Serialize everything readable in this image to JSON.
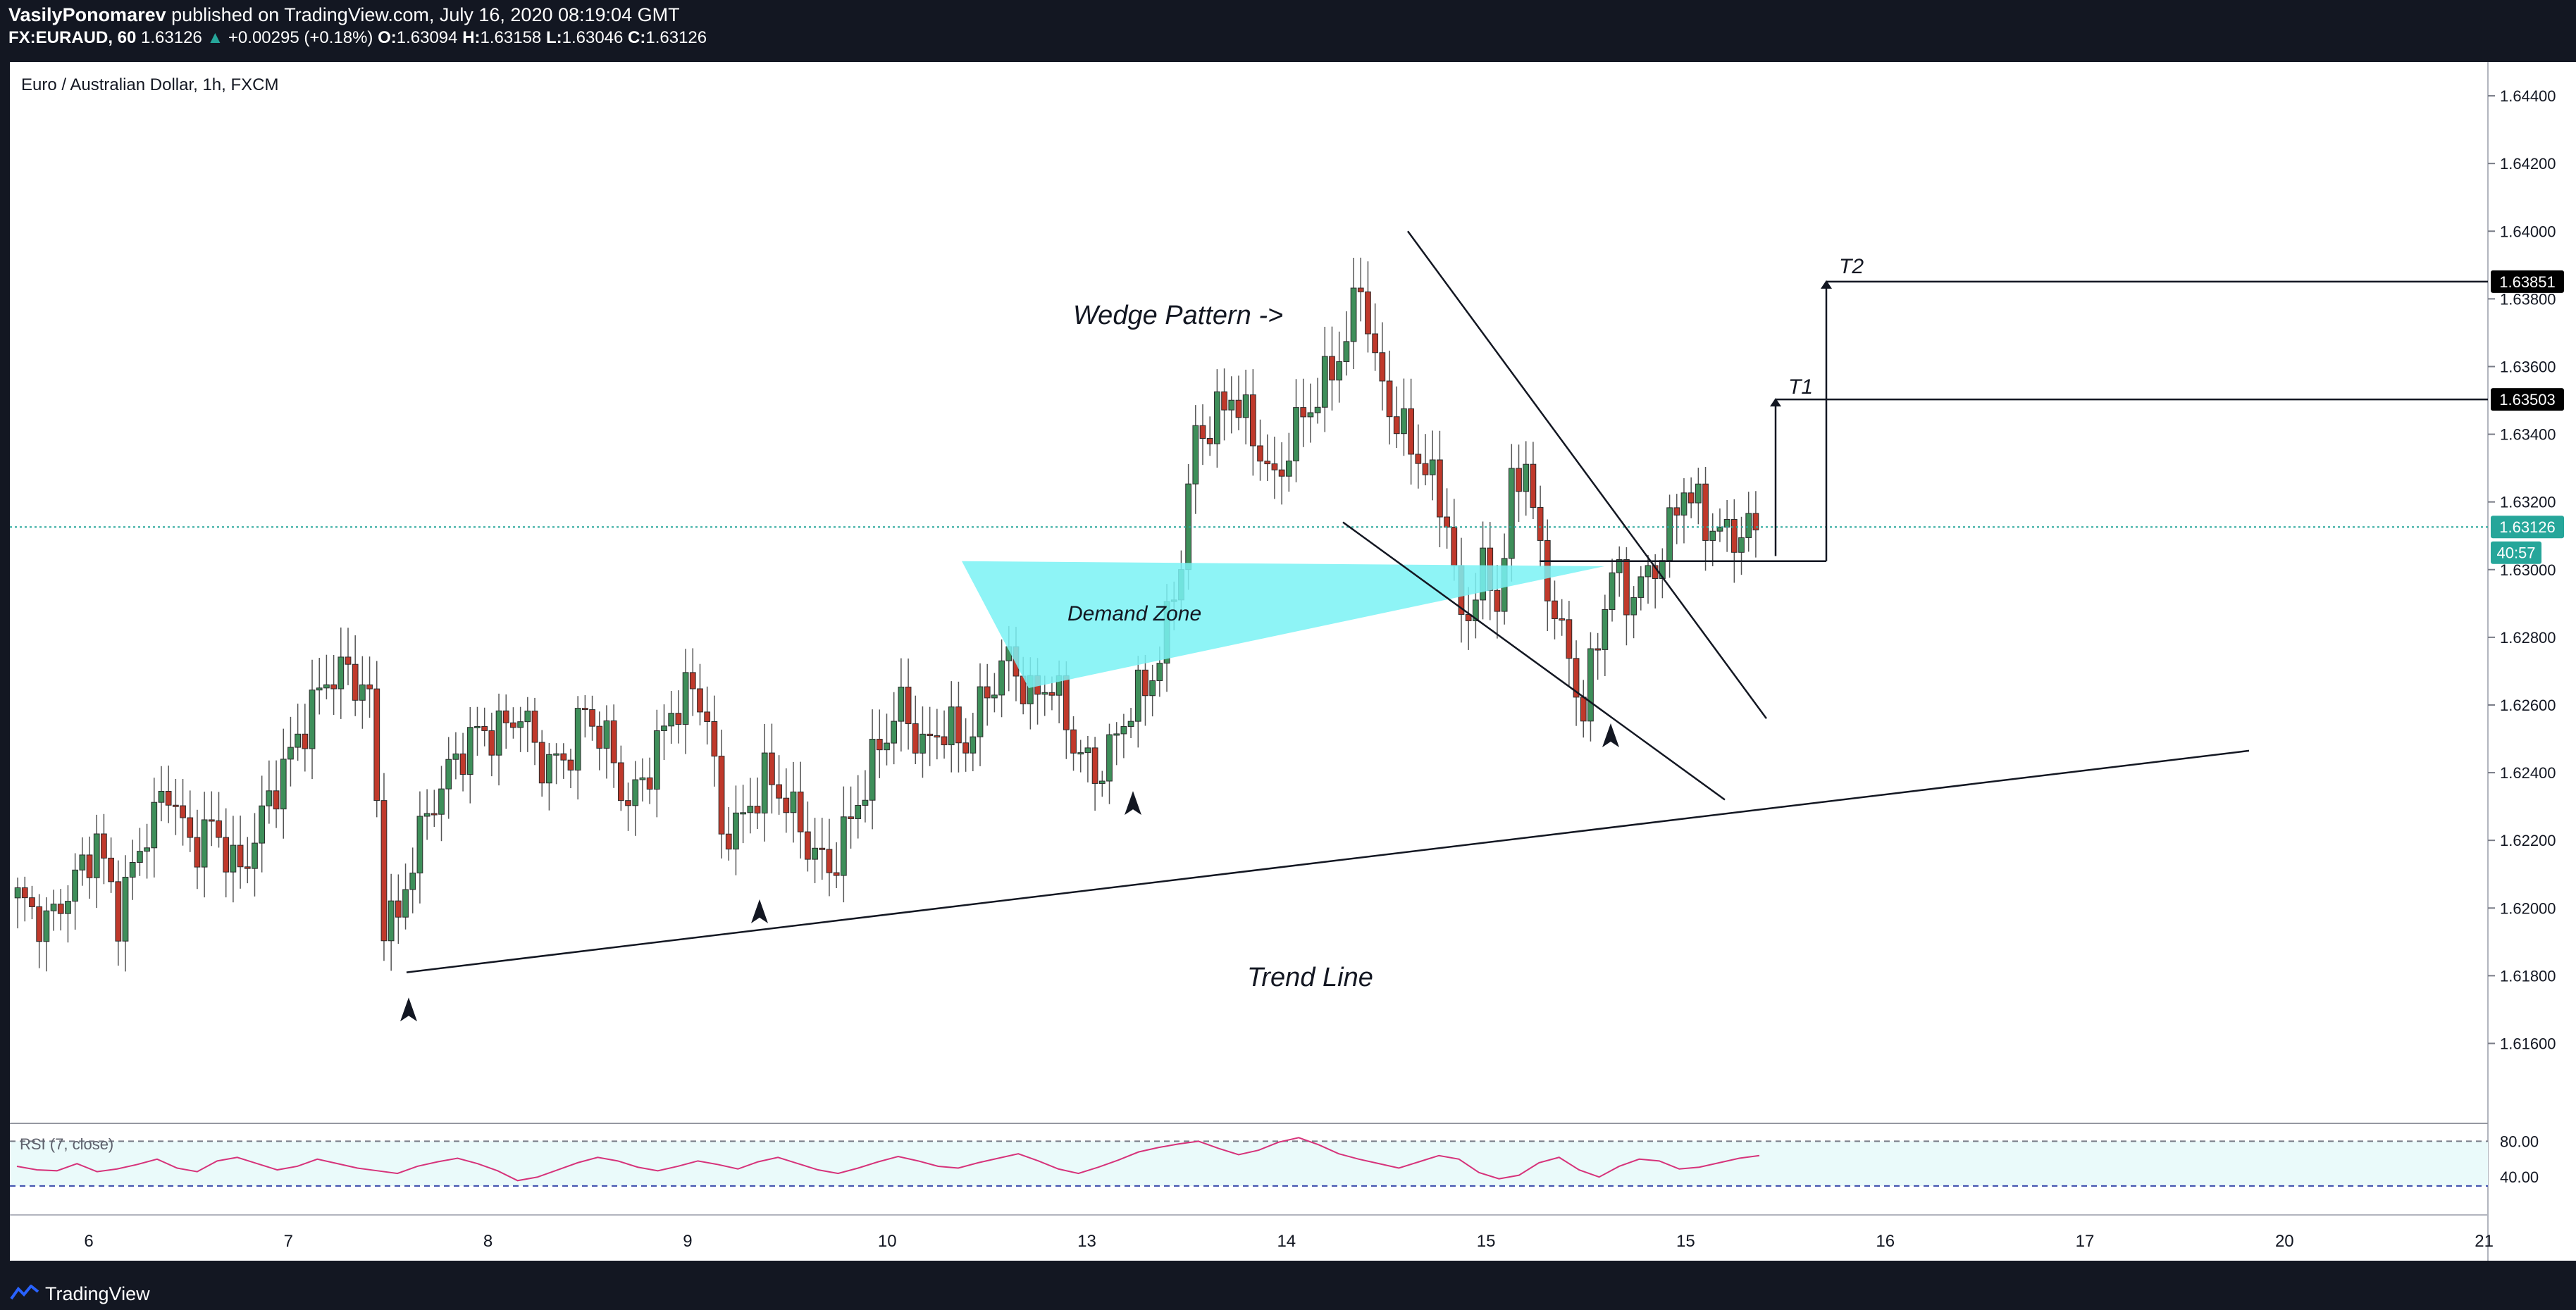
{
  "header": {
    "author": "VasilyPonomarev",
    "published": " published on TradingView.com, July 16, 2020 08:19:04 GMT",
    "symbol": "FX:EURAUD, 60",
    "last": "1.63126",
    "change": "+0.00295 (+0.18%)",
    "o_label": "O:",
    "o": "1.63094",
    "h_label": "H:",
    "h": "1.63158",
    "l_label": "L:",
    "l": "1.63046",
    "c_label": "C:",
    "c": "1.63126"
  },
  "footer": {
    "brand": "TradingView"
  },
  "colors": {
    "background": "#ffffff",
    "frame": "#131722",
    "bull": "#3e8f5a",
    "bear": "#c0392b",
    "rsi": "#d6337a",
    "demand": "#7af2f5",
    "last_price": "#26a69a",
    "grid": "#ffffff"
  },
  "chart_data": {
    "type": "candlestick",
    "title": "Euro / Australian Dollar, 1h, FXCM",
    "x_ticks": [
      "6",
      "7",
      "8",
      "9",
      "10",
      "13",
      "14",
      "15",
      "15",
      "16",
      "17",
      "20",
      "21"
    ],
    "y_ticks": [
      "1.64400",
      "1.64200",
      "1.64000",
      "1.63800",
      "1.63600",
      "1.63400",
      "1.63200",
      "1.63000",
      "1.62800",
      "1.62600",
      "1.62400",
      "1.62200",
      "1.62000",
      "1.61800",
      "1.61600"
    ],
    "ylim": [
      1.6137,
      1.645
    ],
    "price_badges": [
      {
        "label": "1.63851",
        "value": 1.63851,
        "style": "black"
      },
      {
        "label": "1.63503",
        "value": 1.63503,
        "style": "black"
      },
      {
        "label": "1.63126",
        "value": 1.63126,
        "style": "green"
      },
      {
        "label": "40:57",
        "value": 1.6305,
        "style": "green"
      }
    ],
    "last_price": 1.63126,
    "close_path": [
      [
        0,
        1.6203
      ],
      [
        0.5,
        1.6195
      ],
      [
        1,
        1.6208
      ],
      [
        1.4,
        1.622
      ],
      [
        1.8,
        1.6198
      ],
      [
        2.2,
        1.6218
      ],
      [
        2.7,
        1.6236
      ],
      [
        3.1,
        1.6218
      ],
      [
        3.5,
        1.6224
      ],
      [
        4,
        1.621
      ],
      [
        4.5,
        1.6232
      ],
      [
        5,
        1.625
      ],
      [
        5.5,
        1.6268
      ],
      [
        5.9,
        1.627
      ],
      [
        6.3,
        1.6262
      ],
      [
        6.6,
        1.6198
      ],
      [
        6.8,
        1.6196
      ],
      [
        7.1,
        1.6216
      ],
      [
        7.5,
        1.6232
      ],
      [
        7.9,
        1.6244
      ],
      [
        8.3,
        1.6252
      ],
      [
        8.7,
        1.6252
      ],
      [
        9.1,
        1.6258
      ],
      [
        9.5,
        1.6243
      ],
      [
        9.9,
        1.6243
      ],
      [
        10.3,
        1.6258
      ],
      [
        10.7,
        1.6249
      ],
      [
        11.1,
        1.623
      ],
      [
        11.5,
        1.6242
      ],
      [
        11.9,
        1.6258
      ],
      [
        12.3,
        1.6265
      ],
      [
        12.5,
        1.6257
      ],
      [
        12.7,
        1.6222
      ],
      [
        13.1,
        1.6226
      ],
      [
        13.5,
        1.6239
      ],
      [
        13.9,
        1.6232
      ],
      [
        14.3,
        1.6219
      ],
      [
        14.7,
        1.6211
      ],
      [
        15.1,
        1.6226
      ],
      [
        15.6,
        1.6248
      ],
      [
        16,
        1.626
      ],
      [
        16.4,
        1.6247
      ],
      [
        16.8,
        1.6254
      ],
      [
        17.2,
        1.6248
      ],
      [
        17.6,
        1.6264
      ],
      [
        18,
        1.6274
      ],
      [
        18.4,
        1.6262
      ],
      [
        18.8,
        1.6267
      ],
      [
        19.2,
        1.6249
      ],
      [
        19.6,
        1.6239
      ],
      [
        19.9,
        1.6246
      ],
      [
        20.3,
        1.626
      ],
      [
        20.6,
        1.6265
      ],
      [
        20.9,
        1.6274
      ],
      [
        21.3,
        1.6304
      ],
      [
        21.6,
        1.634
      ],
      [
        21.9,
        1.6342
      ],
      [
        22.3,
        1.6352
      ],
      [
        22.7,
        1.634
      ],
      [
        23.1,
        1.6325
      ],
      [
        23.5,
        1.6342
      ],
      [
        24,
        1.6355
      ],
      [
        24.4,
        1.6368
      ],
      [
        24.6,
        1.6386
      ],
      [
        24.8,
        1.636
      ],
      [
        25.1,
        1.6348
      ],
      [
        25.4,
        1.634
      ],
      [
        25.8,
        1.633
      ],
      [
        26.2,
        1.6315
      ],
      [
        26.5,
        1.6283
      ],
      [
        26.9,
        1.63
      ],
      [
        27.2,
        1.629
      ],
      [
        27.5,
        1.6322
      ],
      [
        27.8,
        1.6333
      ],
      [
        28.1,
        1.6303
      ],
      [
        28.4,
        1.6288
      ],
      [
        28.7,
        1.6273
      ],
      [
        29,
        1.6258
      ],
      [
        29.3,
        1.628
      ],
      [
        29.6,
        1.63
      ],
      [
        29.9,
        1.6292
      ],
      [
        30.2,
        1.6295
      ],
      [
        30.6,
        1.6305
      ],
      [
        31,
        1.6325
      ],
      [
        31.4,
        1.6314
      ],
      [
        31.8,
        1.631
      ],
      [
        32.3,
        1.6312
      ]
    ],
    "bullish_wedge_pattern": {
      "upper_line": [
        [
          14.2,
          1.64
        ],
        [
          18.3,
          1.6262
        ]
      ],
      "lower_line": [
        [
          14.8,
          1.6314
        ],
        [
          19.9,
          1.6232
        ]
      ]
    },
    "trend_line": [
      [
        4.3,
        1.6181
      ],
      [
        25.5,
        1.6311
      ]
    ],
    "demand_zone": {
      "top": 1.63025,
      "bottom_left": 1.6265,
      "x_start": 17.4,
      "x_end": 29.2
    },
    "targets": [
      {
        "label": "T1",
        "value": 1.63503
      },
      {
        "label": "T2",
        "value": 1.63851
      }
    ],
    "swing_arrows": [
      {
        "x": 6.7,
        "y": 1.6169
      },
      {
        "x": 12.6,
        "y": 1.6198
      },
      {
        "x": 18.0,
        "y": 1.623
      },
      {
        "x": 28.1,
        "y": 1.625
      }
    ],
    "annotations": [
      "Wedge Pattern ->",
      "Trend Line",
      "Demand Zone",
      "T1",
      "T2"
    ]
  },
  "rsi": {
    "label": "RSI (7, close)",
    "ticks": [
      "80.00",
      "40.00"
    ],
    "levels": [
      80,
      40,
      30
    ],
    "ylim": [
      0,
      100
    ],
    "values": [
      52,
      48,
      47,
      55,
      46,
      49,
      54,
      60,
      50,
      46,
      58,
      62,
      55,
      48,
      52,
      60,
      55,
      50,
      47,
      44,
      52,
      57,
      61,
      55,
      47,
      36,
      40,
      48,
      56,
      62,
      58,
      51,
      47,
      52,
      58,
      54,
      49,
      57,
      62,
      55,
      48,
      44,
      50,
      57,
      63,
      58,
      52,
      50,
      56,
      61,
      66,
      58,
      49,
      44,
      51,
      59,
      68,
      73,
      77,
      80,
      72,
      65,
      70,
      79,
      84,
      76,
      66,
      60,
      55,
      50,
      57,
      64,
      60,
      45,
      38,
      42,
      56,
      62,
      48,
      40,
      52,
      60,
      58,
      49,
      51,
      56,
      61,
      64
    ]
  }
}
